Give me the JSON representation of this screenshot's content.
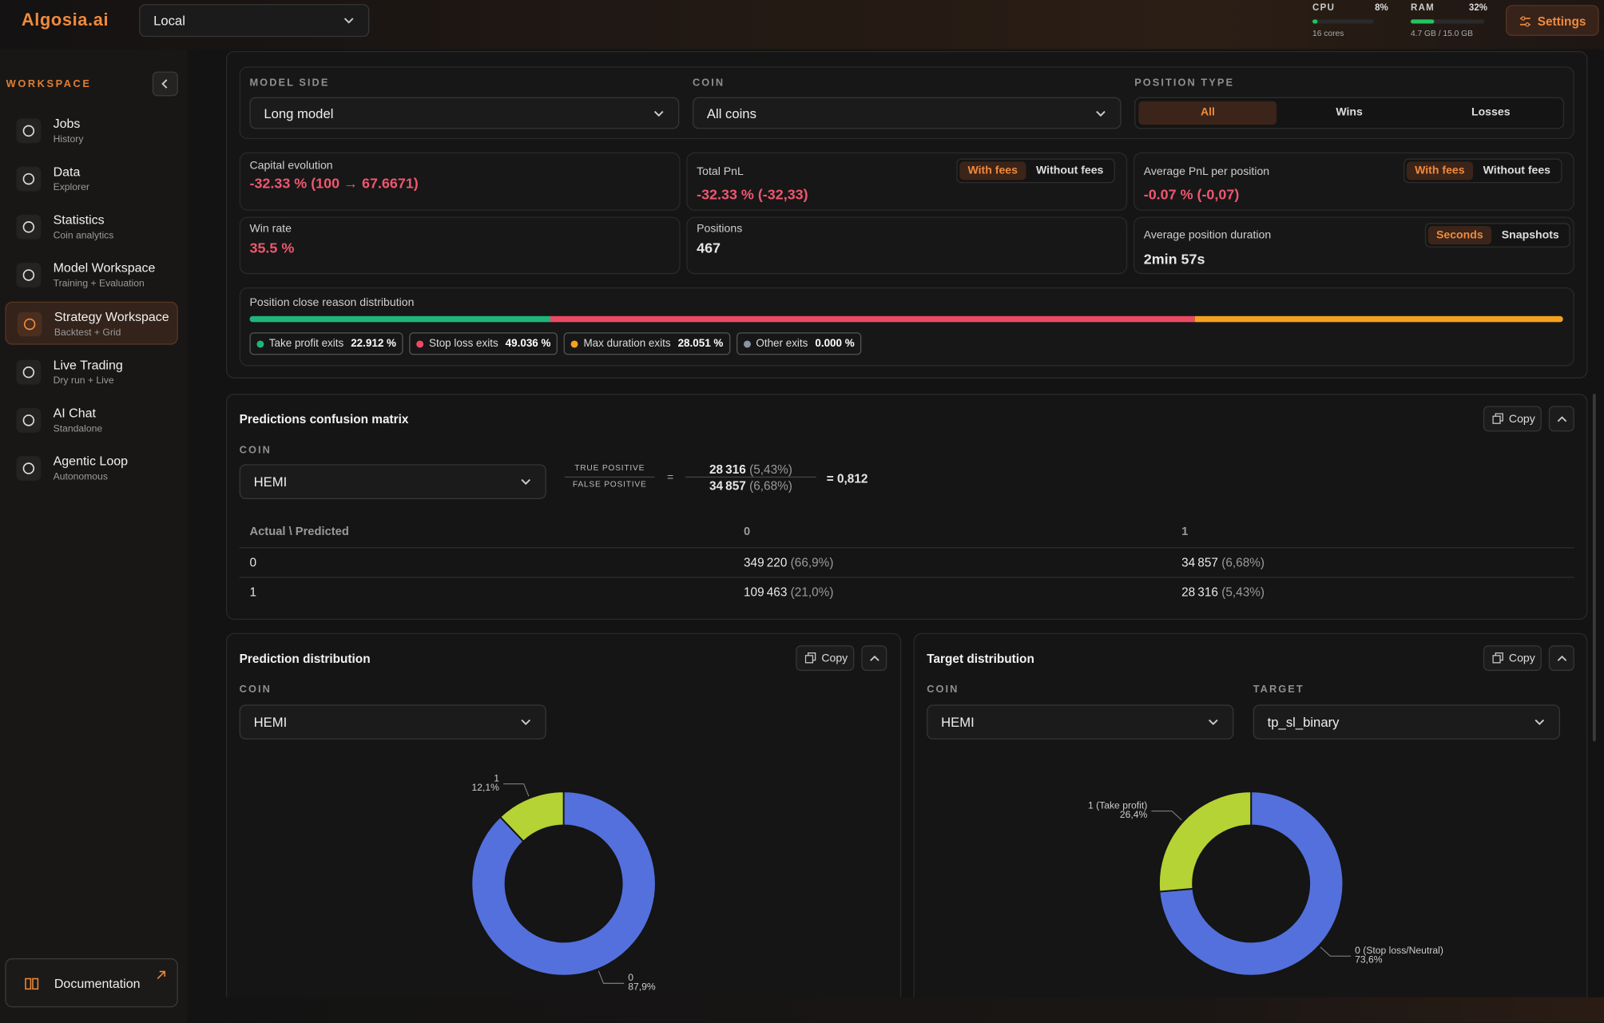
{
  "header": {
    "logo": "Algosia.ai",
    "environment": "Local",
    "cpu": {
      "label": "CPU",
      "value": 8,
      "value_label": "8%",
      "detail": "16 cores"
    },
    "ram": {
      "label": "RAM",
      "value": 32,
      "value_label": "32%",
      "detail": "4.7 GB / 15.0 GB"
    },
    "settings": "Settings"
  },
  "sidebar": {
    "section": "WORKSPACE",
    "items": [
      {
        "title": "Jobs",
        "subtitle": "History"
      },
      {
        "title": "Data",
        "subtitle": "Explorer"
      },
      {
        "title": "Statistics",
        "subtitle": "Coin analytics"
      },
      {
        "title": "Model Workspace",
        "subtitle": "Training + Evaluation"
      },
      {
        "title": "Strategy Workspace",
        "subtitle": "Backtest + Grid",
        "active": true
      },
      {
        "title": "Live Trading",
        "subtitle": "Dry run + Live"
      },
      {
        "title": "AI Chat",
        "subtitle": "Standalone"
      },
      {
        "title": "Agentic Loop",
        "subtitle": "Autonomous"
      }
    ],
    "documentation": "Documentation"
  },
  "filters": {
    "model_side": {
      "label": "MODEL SIDE",
      "value": "Long model"
    },
    "coin": {
      "label": "COIN",
      "value": "All coins"
    },
    "position_type": {
      "label": "POSITION TYPE",
      "options": [
        "All",
        "Wins",
        "Losses"
      ],
      "selected": 0
    }
  },
  "metrics": {
    "capital_evolution": {
      "label": "Capital evolution",
      "value": "-32.33 % (100 → 67.6671)"
    },
    "total_pnl": {
      "label": "Total PnL",
      "value": "-32.33 % (-32,33)",
      "options": [
        "With fees",
        "Without fees"
      ]
    },
    "average_pnl": {
      "label": "Average PnL per position",
      "value": "-0.07 % (-0,07)",
      "options": [
        "With fees",
        "Without fees"
      ]
    },
    "win_rate": {
      "label": "Win rate",
      "value": "35.5 %"
    },
    "positions": {
      "label": "Positions",
      "value": "467"
    },
    "average_duration": {
      "label": "Average position duration",
      "value": "2min 57s",
      "options": [
        "Seconds",
        "Snapshots"
      ]
    }
  },
  "close_reasons": {
    "title": "Position close reason distribution",
    "items": [
      {
        "label": "Take profit exits",
        "value": 22.912,
        "value_label": "22.912 %",
        "color": "#1fb57a"
      },
      {
        "label": "Stop loss exits",
        "value": 49.036,
        "value_label": "49.036 %",
        "color": "#ec4a64"
      },
      {
        "label": "Max duration exits",
        "value": 28.051,
        "value_label": "28.051 %",
        "color": "#f5a020"
      },
      {
        "label": "Other exits",
        "value": 0.0,
        "value_label": "0.000 %",
        "color": "#8a93a6"
      }
    ]
  },
  "confusion_matrix": {
    "title": "Predictions confusion matrix",
    "copy": "Copy",
    "coin_label": "COIN",
    "coin": "HEMI",
    "formula": {
      "numerator_label": "TRUE POSITIVE",
      "denominator_label": "FALSE POSITIVE",
      "equals": "=",
      "numerator": "28 316",
      "numerator_pct": "(5,43%)",
      "denominator": "34 857",
      "denominator_pct": "(6,68%)",
      "result": "= 0,812"
    },
    "header": [
      "Actual \\ Predicted",
      "0",
      "1"
    ],
    "rows": [
      {
        "actual": "0",
        "cells": [
          {
            "count": "349 220",
            "pct": "(66,9%)"
          },
          {
            "count": "34 857",
            "pct": "(6,68%)"
          }
        ]
      },
      {
        "actual": "1",
        "cells": [
          {
            "count": "109 463",
            "pct": "(21,0%)"
          },
          {
            "count": "28 316",
            "pct": "(5,43%)"
          }
        ]
      }
    ]
  },
  "prediction_distribution": {
    "title": "Prediction distribution",
    "copy": "Copy",
    "coin_label": "COIN",
    "coin": "HEMI",
    "chart": {
      "type": "pie",
      "categories": [
        "0",
        "1"
      ],
      "values": [
        87.9,
        12.1
      ],
      "value_labels": [
        "87,9%",
        "12,1%"
      ],
      "colors": [
        "#5470dd",
        "#b5d334"
      ]
    }
  },
  "target_distribution": {
    "title": "Target distribution",
    "copy": "Copy",
    "coin_label": "COIN",
    "coin": "HEMI",
    "target_label": "TARGET",
    "target": "tp_sl_binary",
    "chart": {
      "type": "pie",
      "categories": [
        "0 (Stop loss/Neutral)",
        "1 (Take profit)"
      ],
      "values": [
        73.6,
        26.4
      ],
      "value_labels": [
        "73,6%",
        "26,4%"
      ],
      "colors": [
        "#5470dd",
        "#b5d334"
      ]
    }
  }
}
